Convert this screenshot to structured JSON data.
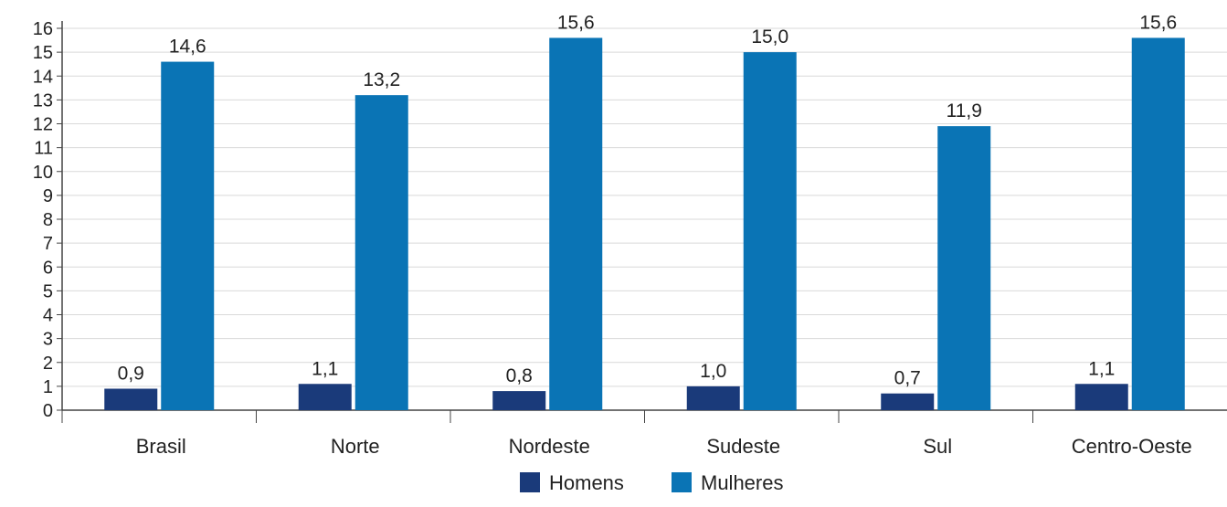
{
  "chart_data": {
    "type": "bar",
    "categories": [
      "Brasil",
      "Norte",
      "Nordeste",
      "Sudeste",
      "Sul",
      "Centro-Oeste"
    ],
    "series": [
      {
        "name": "Homens",
        "values": [
          0.9,
          1.1,
          0.8,
          1.0,
          0.7,
          1.1
        ],
        "labels": [
          "0,9",
          "1,1",
          "0,8",
          "1,0",
          "0,7",
          "1,1"
        ],
        "color": "#1a3a7a"
      },
      {
        "name": "Mulheres",
        "values": [
          14.6,
          13.2,
          15.6,
          15.0,
          11.9,
          15.6
        ],
        "labels": [
          "14,6",
          "13,2",
          "15,6",
          "15,0",
          "11,9",
          "15,6"
        ],
        "color": "#0a74b5"
      }
    ],
    "yticks": [
      0,
      1,
      2,
      3,
      4,
      5,
      6,
      7,
      8,
      9,
      10,
      11,
      12,
      13,
      14,
      15,
      16
    ],
    "ylim": [
      0,
      16
    ],
    "grid": true,
    "legend_position": "bottom-center",
    "title": "",
    "xlabel": "",
    "ylabel": ""
  }
}
